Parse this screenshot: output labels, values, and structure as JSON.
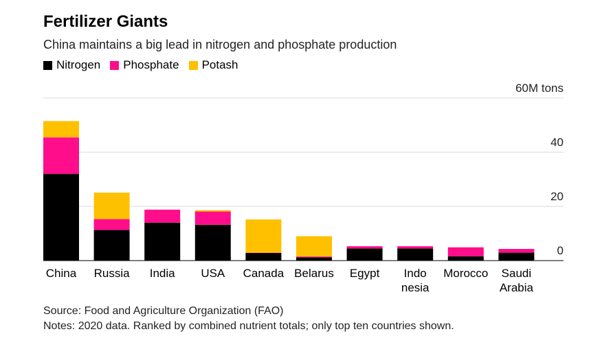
{
  "chart_data": {
    "type": "bar",
    "stacked": true,
    "title": "Fertilizer Giants",
    "subtitle": "China maintains a big lead in nitrogen and phosphate production",
    "unit_label": "60M tons",
    "ylim": [
      0,
      60
    ],
    "yticks": [
      0,
      20,
      40,
      60
    ],
    "ytick_labels": [
      "0",
      "20",
      "40",
      "60M tons"
    ],
    "legend_position": "top-left",
    "grid": true,
    "categories": [
      [
        "China"
      ],
      [
        "Russia"
      ],
      [
        "India"
      ],
      [
        "USA"
      ],
      [
        "Canada"
      ],
      [
        "Belarus"
      ],
      [
        "Egypt"
      ],
      [
        "Indo",
        "nesia"
      ],
      [
        "Morocco"
      ],
      [
        "Saudi",
        "Arabia"
      ]
    ],
    "series": [
      {
        "name": "Nitrogen",
        "color": "#000000",
        "values": [
          32,
          11.3,
          14,
          13.2,
          2.8,
          1.2,
          4.5,
          4.5,
          1.6,
          2.9
        ]
      },
      {
        "name": "Phosphate",
        "color": "#ff0d8a",
        "values": [
          13.5,
          4,
          4.8,
          4.9,
          0.1,
          0.3,
          0.8,
          0.8,
          3.3,
          1.4
        ]
      },
      {
        "name": "Potash",
        "color": "#ffc000",
        "values": [
          6,
          9.8,
          0,
          0.5,
          12.3,
          7.5,
          0,
          0,
          0,
          0
        ]
      }
    ]
  },
  "footer": {
    "source": "Source: Food and Agriculture Organization (FAO)",
    "notes": "Notes: 2020 data. Ranked by combined nutrient totals; only top ten countries shown."
  }
}
